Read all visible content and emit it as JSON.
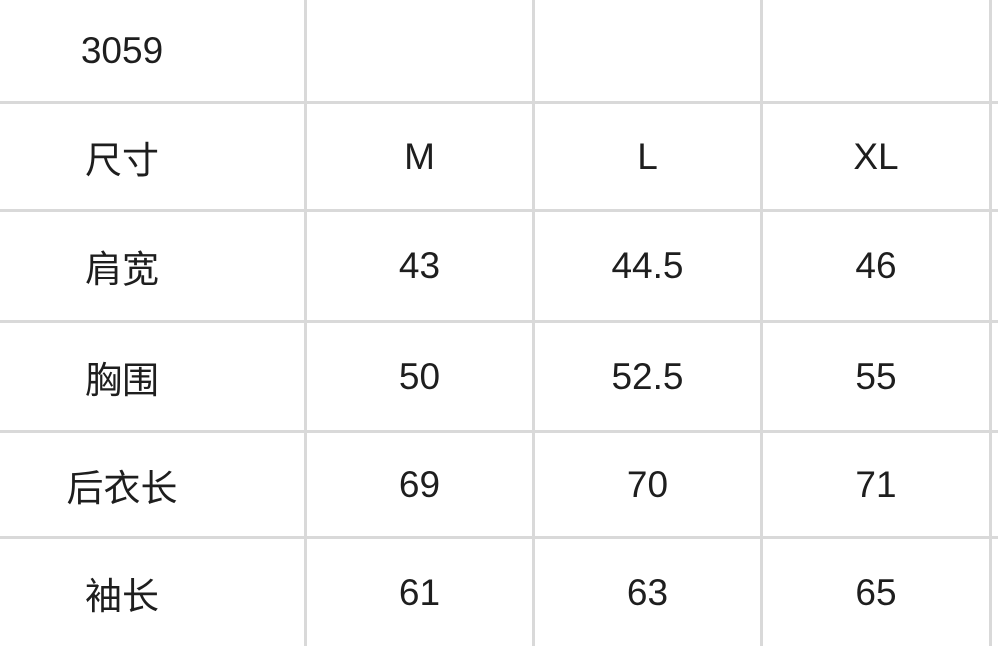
{
  "title_code": "3059",
  "header": {
    "label": "尺寸",
    "sizes": [
      "M",
      "L",
      "XL"
    ]
  },
  "rows": [
    {
      "label": "肩宽",
      "values": [
        "43",
        "44.5",
        "46"
      ]
    },
    {
      "label": "胸围",
      "values": [
        "50",
        "52.5",
        "55"
      ]
    },
    {
      "label": "后衣长",
      "values": [
        "69",
        "70",
        "71"
      ]
    },
    {
      "label": "袖长",
      "values": [
        "61",
        "63",
        "65"
      ]
    }
  ]
}
